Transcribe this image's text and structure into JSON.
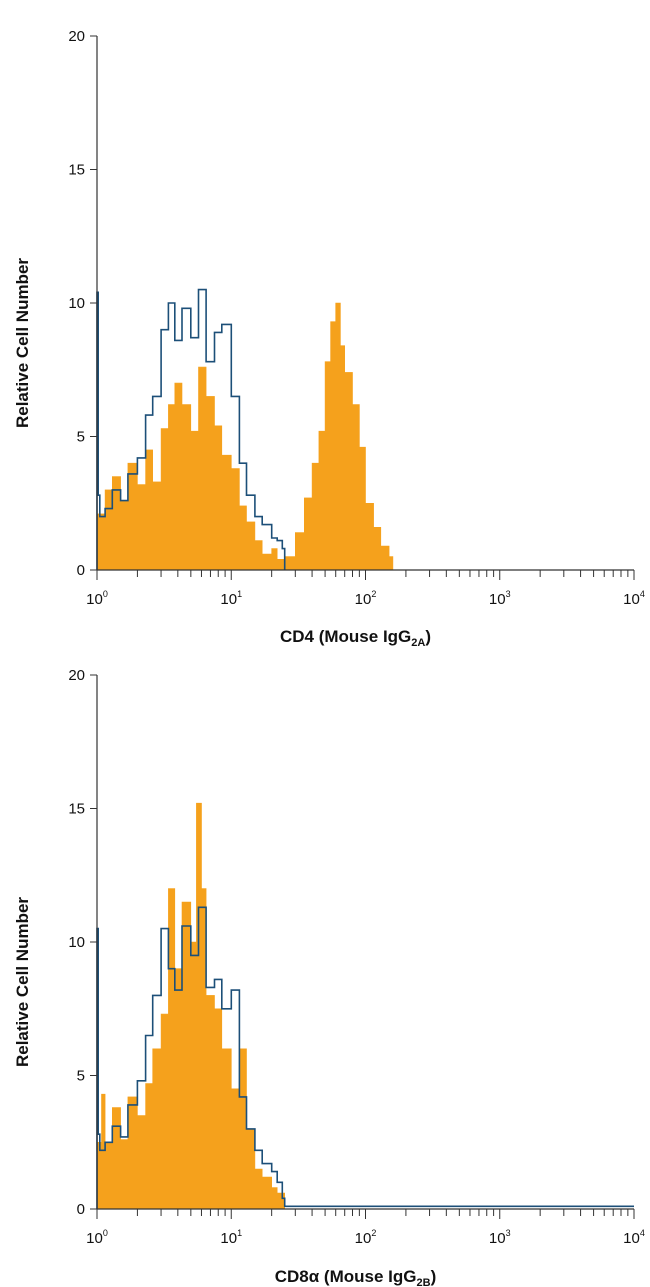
{
  "colors": {
    "filled": "#F5A11C",
    "outline": "#1C4F78",
    "axis": "#333333"
  },
  "chart_data": [
    {
      "type": "area",
      "xscale": "log",
      "xlim": [
        1,
        10000
      ],
      "ylim": [
        0,
        20
      ],
      "yticks": [
        0,
        5,
        10,
        15,
        20
      ],
      "xticks": [
        {
          "base": "10",
          "exp": "0"
        },
        {
          "base": "10",
          "exp": "1"
        },
        {
          "base": "10",
          "exp": "2"
        },
        {
          "base": "10",
          "exp": "3"
        },
        {
          "base": "10",
          "exp": "4"
        }
      ],
      "ylabel": "Relative Cell Number",
      "xlabel": {
        "main": "CD4 (Mouse IgG",
        "sub": "2A",
        "tail": ")"
      },
      "series": [
        {
          "style": "filled",
          "x": [
            1.0,
            1.15,
            1.3,
            1.5,
            1.7,
            2.0,
            2.3,
            2.6,
            3.0,
            3.4,
            3.8,
            4.3,
            5.0,
            5.7,
            6.5,
            7.5,
            8.5,
            10,
            11.5,
            13,
            15,
            17,
            20,
            22,
            25,
            30,
            35,
            40,
            45,
            50,
            55,
            60,
            65,
            70,
            80,
            90,
            100,
            115,
            130,
            150,
            160
          ],
          "values": [
            2.1,
            3.0,
            3.5,
            2.6,
            4.0,
            3.2,
            4.5,
            3.3,
            5.3,
            6.2,
            7.0,
            6.2,
            5.2,
            7.6,
            6.5,
            5.4,
            4.3,
            3.8,
            2.4,
            1.8,
            1.1,
            0.6,
            0.8,
            0.4,
            0.5,
            1.4,
            2.7,
            4.0,
            5.2,
            7.8,
            9.3,
            10.0,
            8.4,
            7.4,
            6.2,
            4.6,
            2.5,
            1.6,
            0.9,
            0.5,
            0.0
          ]
        },
        {
          "style": "outline",
          "x": [
            1.0,
            1.02,
            1.05,
            1.15,
            1.3,
            1.5,
            1.7,
            2.0,
            2.3,
            2.6,
            3.0,
            3.4,
            3.8,
            4.3,
            5.0,
            5.7,
            6.5,
            7.5,
            8.5,
            10,
            11.5,
            13,
            15,
            17,
            20,
            22,
            24,
            25
          ],
          "values": [
            10.4,
            2.8,
            2.0,
            2.3,
            3.0,
            2.6,
            3.6,
            4.2,
            5.8,
            6.5,
            9.0,
            10.0,
            8.6,
            9.8,
            8.7,
            10.5,
            7.8,
            8.9,
            9.2,
            6.5,
            4.0,
            2.8,
            2.0,
            1.7,
            1.2,
            1.1,
            0.8,
            0.0
          ]
        }
      ]
    },
    {
      "type": "area",
      "xscale": "log",
      "xlim": [
        1,
        10000
      ],
      "ylim": [
        0,
        20
      ],
      "yticks": [
        0,
        5,
        10,
        15,
        20
      ],
      "xticks": [
        {
          "base": "10",
          "exp": "0"
        },
        {
          "base": "10",
          "exp": "1"
        },
        {
          "base": "10",
          "exp": "2"
        },
        {
          "base": "10",
          "exp": "3"
        },
        {
          "base": "10",
          "exp": "4"
        }
      ],
      "ylabel": "Relative Cell Number",
      "xlabel": {
        "main": "CD8α (Mouse IgG",
        "sub": "2B",
        "tail": ")"
      },
      "series": [
        {
          "style": "filled",
          "x": [
            1.0,
            1.08,
            1.15,
            1.3,
            1.5,
            1.7,
            2.0,
            2.3,
            2.6,
            3.0,
            3.4,
            3.8,
            4.3,
            5.0,
            5.5,
            6.0,
            6.5,
            7.5,
            8.5,
            10,
            11.5,
            13,
            15,
            17,
            20,
            22,
            25
          ],
          "values": [
            2.5,
            4.3,
            2.5,
            3.8,
            2.6,
            4.2,
            3.5,
            4.7,
            6.0,
            7.3,
            12.0,
            9.0,
            11.5,
            10.0,
            15.2,
            12.0,
            8.0,
            7.5,
            6.0,
            4.5,
            6.0,
            3.0,
            1.5,
            1.2,
            0.8,
            0.6,
            0.0
          ]
        },
        {
          "style": "outline",
          "x": [
            1.0,
            1.02,
            1.05,
            1.15,
            1.3,
            1.5,
            1.7,
            2.0,
            2.3,
            2.6,
            3.0,
            3.4,
            3.8,
            4.3,
            5.0,
            5.7,
            6.5,
            7.5,
            8.5,
            10,
            11.5,
            13,
            15,
            17,
            20,
            22,
            24,
            25,
            10000
          ],
          "values": [
            10.5,
            2.8,
            2.2,
            2.5,
            3.1,
            2.7,
            3.9,
            4.8,
            6.5,
            8.0,
            10.5,
            9.0,
            8.2,
            10.6,
            9.5,
            11.3,
            8.3,
            8.6,
            7.5,
            8.2,
            4.2,
            3.0,
            2.2,
            1.7,
            1.4,
            1.0,
            0.4,
            0.1,
            0.1
          ]
        }
      ]
    }
  ]
}
